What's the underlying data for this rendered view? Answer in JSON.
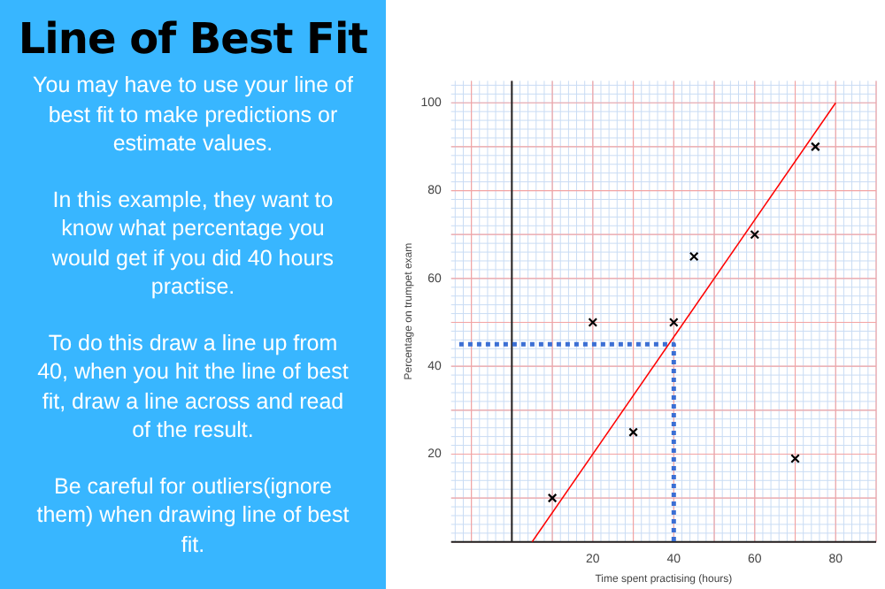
{
  "chart_data": {
    "type": "scatter",
    "title": "Line of Best Fit",
    "annotations": [
      "You may have to use your line of best fit to make predictions or estimate values.",
      "In this example, they want to know what percentage you would get if you did 40 hours practise.",
      "To do this draw a line up from 40, when you hit the line of best fit, draw a line across and read of the result.",
      "Be careful for outliers(ignore them) when drawing line of best fit."
    ],
    "xlabel": "Time spent practising (hours)",
    "ylabel": "Percentage on trumpet exam",
    "xlim": [
      -15,
      90
    ],
    "ylim": [
      0,
      105
    ],
    "xticks": [
      {
        "value": 0,
        "label": null
      },
      20,
      40,
      60,
      80
    ],
    "yticks": [
      {
        "value": 0,
        "label": null
      },
      20,
      40,
      60,
      80,
      100
    ],
    "grid": true,
    "marker": "cross",
    "series": [
      {
        "type": "scatter",
        "color": "#000000",
        "x": [
          10,
          20,
          30,
          40,
          45,
          60,
          75,
          70
        ],
        "values": [
          10,
          50,
          25,
          50,
          65,
          70,
          90,
          19
        ]
      },
      {
        "type": "line",
        "color": "#ff0000",
        "x": [
          5,
          80
        ],
        "values": [
          0,
          100
        ],
        "marker": "none"
      },
      {
        "type": "line",
        "color": "#3b6fd4",
        "x": [
          -13,
          40,
          40
        ],
        "values": [
          45,
          45,
          0
        ],
        "marker": "none",
        "line_style": "dotted"
      }
    ]
  }
}
